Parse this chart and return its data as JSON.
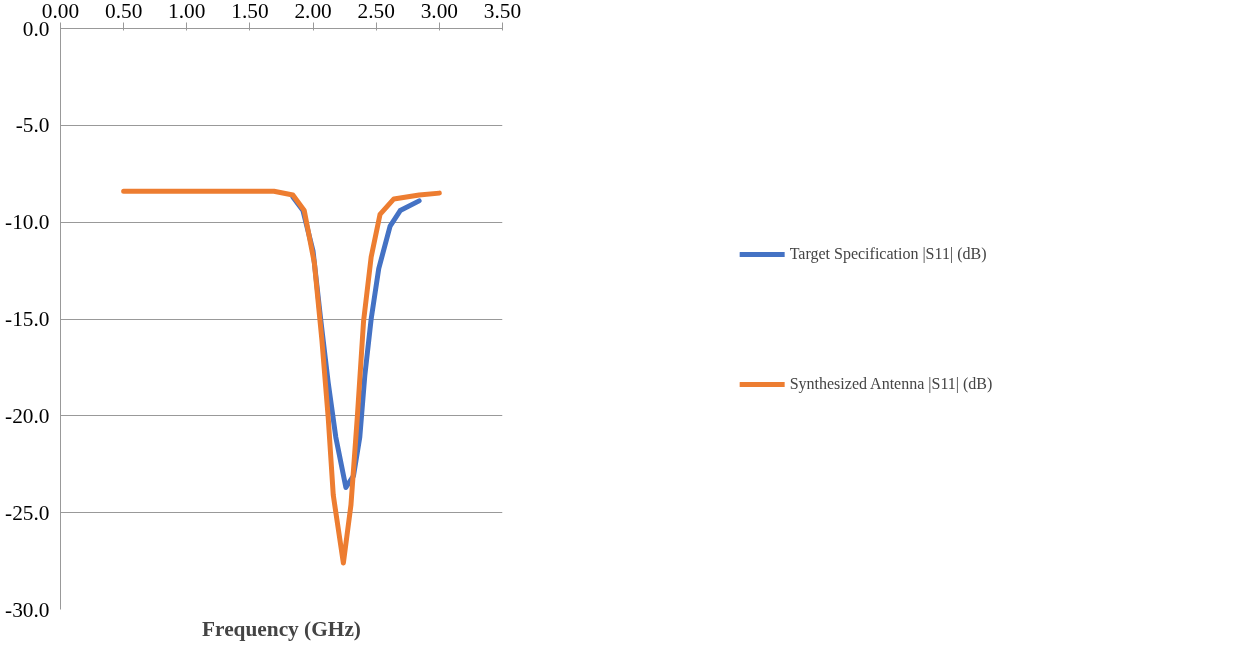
{
  "chart_data": {
    "type": "line",
    "xlabel": "Frequency (GHz)",
    "xlim": [
      0,
      3.5
    ],
    "xticks": [
      {
        "value": 0,
        "label": "0.00"
      },
      {
        "value": 0.5,
        "label": "0.50"
      },
      {
        "value": 1,
        "label": "1.00"
      },
      {
        "value": 1.5,
        "label": "1.50"
      },
      {
        "value": 2,
        "label": "2.00"
      },
      {
        "value": 2.5,
        "label": "2.50"
      },
      {
        "value": 3,
        "label": "3.00"
      },
      {
        "value": 3.5,
        "label": "3.50"
      }
    ],
    "ylim": [
      -30,
      0
    ],
    "yticks": [
      {
        "value": 0,
        "label": "0.0"
      },
      {
        "value": -5,
        "label": "-5.0"
      },
      {
        "value": -10,
        "label": "-10.0"
      },
      {
        "value": -15,
        "label": "-15.0"
      },
      {
        "value": -20,
        "label": "-20.0"
      },
      {
        "value": -25,
        "label": "-25.0"
      },
      {
        "value": -30,
        "label": "-30.0"
      }
    ],
    "grid": "y",
    "legend": "right",
    "line_style": "solid",
    "marker": "none",
    "series": [
      {
        "name": "Target Specification |S11| (dB)",
        "color": "#4472c4",
        "x": [
          1.84,
          1.92,
          2.0,
          2.06,
          2.12,
          2.18,
          2.26,
          2.32,
          2.37,
          2.41,
          2.46,
          2.52,
          2.61,
          2.69,
          2.84
        ],
        "values": [
          -8.7,
          -9.4,
          -11.5,
          -15.0,
          -18.3,
          -21.1,
          -23.7,
          -23.1,
          -21.1,
          -17.9,
          -15.0,
          -12.4,
          -10.2,
          -9.4,
          -8.9
        ]
      },
      {
        "name": "Synthesized Antenna |S11| (dB)",
        "color": "#ed7d31",
        "x": [
          0.5,
          1.0,
          1.5,
          1.69,
          1.84,
          1.93,
          2.01,
          2.07,
          2.12,
          2.16,
          2.24,
          2.3,
          2.35,
          2.4,
          2.46,
          2.53,
          2.64,
          2.84,
          3.0
        ],
        "values": [
          -8.4,
          -8.4,
          -8.4,
          -8.4,
          -8.6,
          -9.4,
          -12.1,
          -16.1,
          -20.1,
          -24.1,
          -27.6,
          -24.6,
          -20.1,
          -15.1,
          -11.8,
          -9.6,
          -8.8,
          -8.6,
          -8.5
        ]
      }
    ]
  }
}
